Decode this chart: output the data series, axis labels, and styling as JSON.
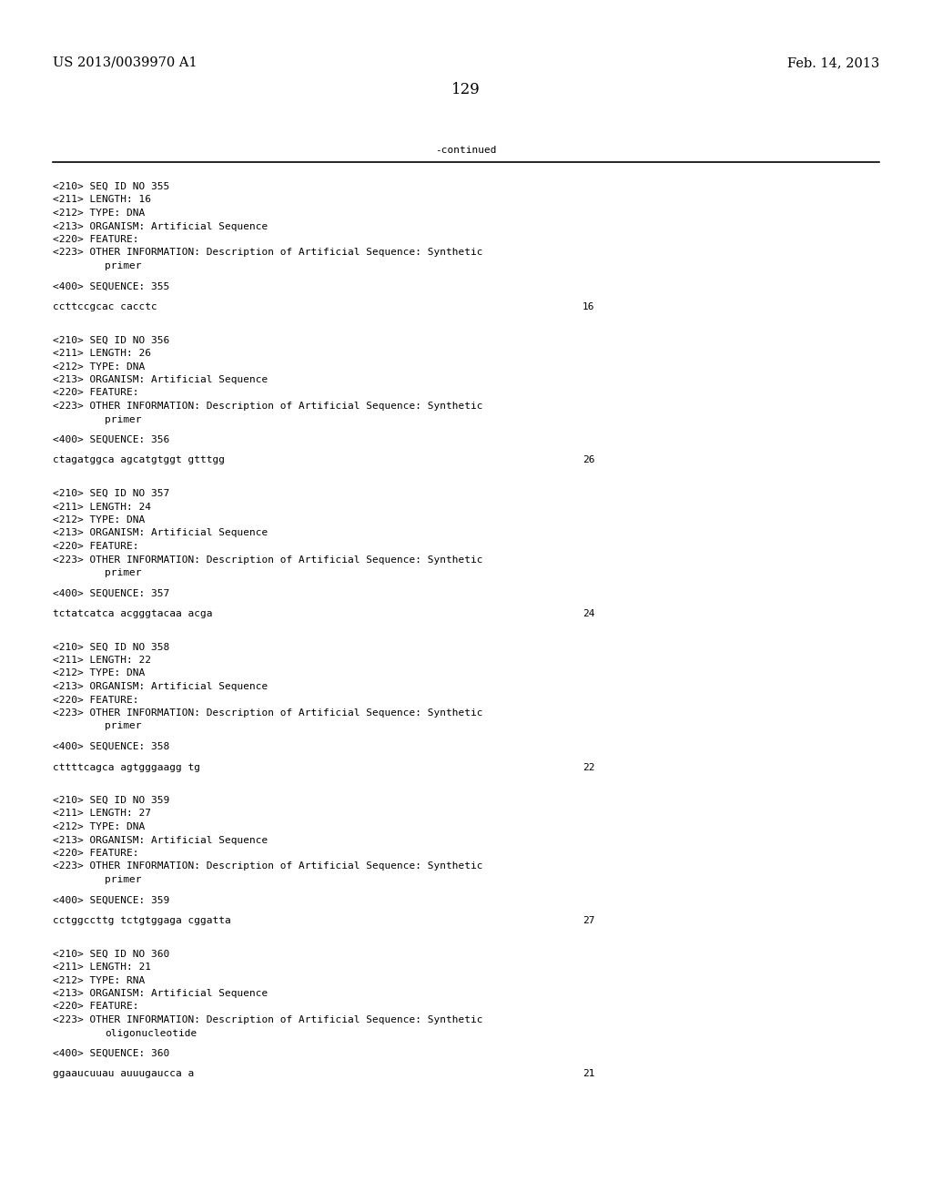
{
  "background_color": "#ffffff",
  "header_left": "US 2013/0039970 A1",
  "header_right": "Feb. 14, 2013",
  "page_number": "129",
  "continued_label": "-continued",
  "monospace_fontsize": 8.0,
  "header_fontsize": 10.5,
  "page_num_fontsize": 12,
  "entries": [
    {
      "seq_id": "355",
      "length": "16",
      "type": "DNA",
      "organism": "Artificial Sequence",
      "other_info": "Description of Artificial Sequence: Synthetic",
      "other_info2": "primer",
      "sequence_label": "355",
      "sequence": "ccttccgcac cacctc",
      "seq_length_num": "16"
    },
    {
      "seq_id": "356",
      "length": "26",
      "type": "DNA",
      "organism": "Artificial Sequence",
      "other_info": "Description of Artificial Sequence: Synthetic",
      "other_info2": "primer",
      "sequence_label": "356",
      "sequence": "ctagatggca agcatgtggt gtttgg",
      "seq_length_num": "26"
    },
    {
      "seq_id": "357",
      "length": "24",
      "type": "DNA",
      "organism": "Artificial Sequence",
      "other_info": "Description of Artificial Sequence: Synthetic",
      "other_info2": "primer",
      "sequence_label": "357",
      "sequence": "tctatcatca acgggtacaa acga",
      "seq_length_num": "24"
    },
    {
      "seq_id": "358",
      "length": "22",
      "type": "DNA",
      "organism": "Artificial Sequence",
      "other_info": "Description of Artificial Sequence: Synthetic",
      "other_info2": "primer",
      "sequence_label": "358",
      "sequence": "cttttcagca agtgggaagg tg",
      "seq_length_num": "22"
    },
    {
      "seq_id": "359",
      "length": "27",
      "type": "DNA",
      "organism": "Artificial Sequence",
      "other_info": "Description of Artificial Sequence: Synthetic",
      "other_info2": "primer",
      "sequence_label": "359",
      "sequence": "cctggccttg tctgtggaga cggatta",
      "seq_length_num": "27"
    },
    {
      "seq_id": "360",
      "length": "21",
      "type": "RNA",
      "organism": "Artificial Sequence",
      "other_info": "Description of Artificial Sequence: Synthetic",
      "other_info2": "oligonucleotide",
      "sequence_label": "360",
      "sequence": "ggaaucuuau auuugaucca a",
      "seq_length_num": "21"
    }
  ]
}
